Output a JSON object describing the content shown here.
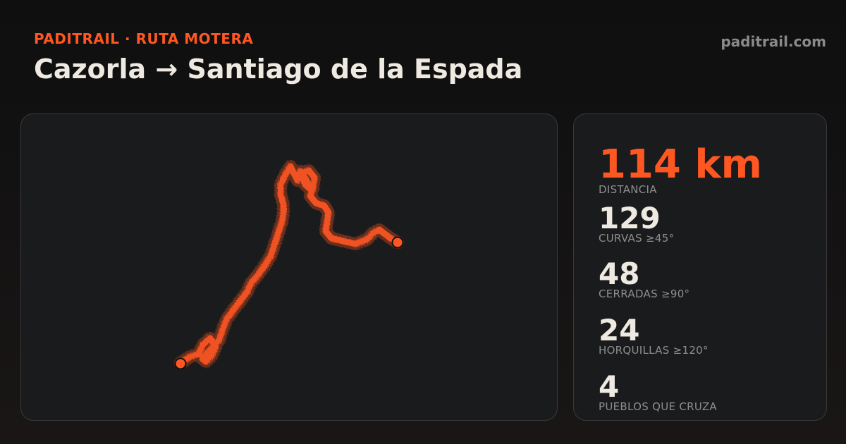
{
  "header": {
    "brand": "PADITRAIL · RUTA MOTERA",
    "title": "Cazorla → Santiago de la Espada",
    "site": "paditrail.com"
  },
  "colors": {
    "accent": "#ff5722",
    "text": "#eeeae2",
    "muted": "#8e8e8e",
    "card": "#1a1b1d",
    "background": "#0f0f0f"
  },
  "stats": [
    {
      "value": "114 km",
      "label": "DISTANCIA"
    },
    {
      "value": "129",
      "label": "CURVAS ≥45°"
    },
    {
      "value": "48",
      "label": "CERRADAS ≥90°"
    },
    {
      "value": "24",
      "label": "HORQUILLAS ≥120°"
    },
    {
      "value": "4",
      "label": "PUEBLOS QUE CRUZA"
    }
  ],
  "map": {
    "route_icon": "route-line",
    "start_icon": "start-marker-icon",
    "end_icon": "end-marker-icon"
  }
}
